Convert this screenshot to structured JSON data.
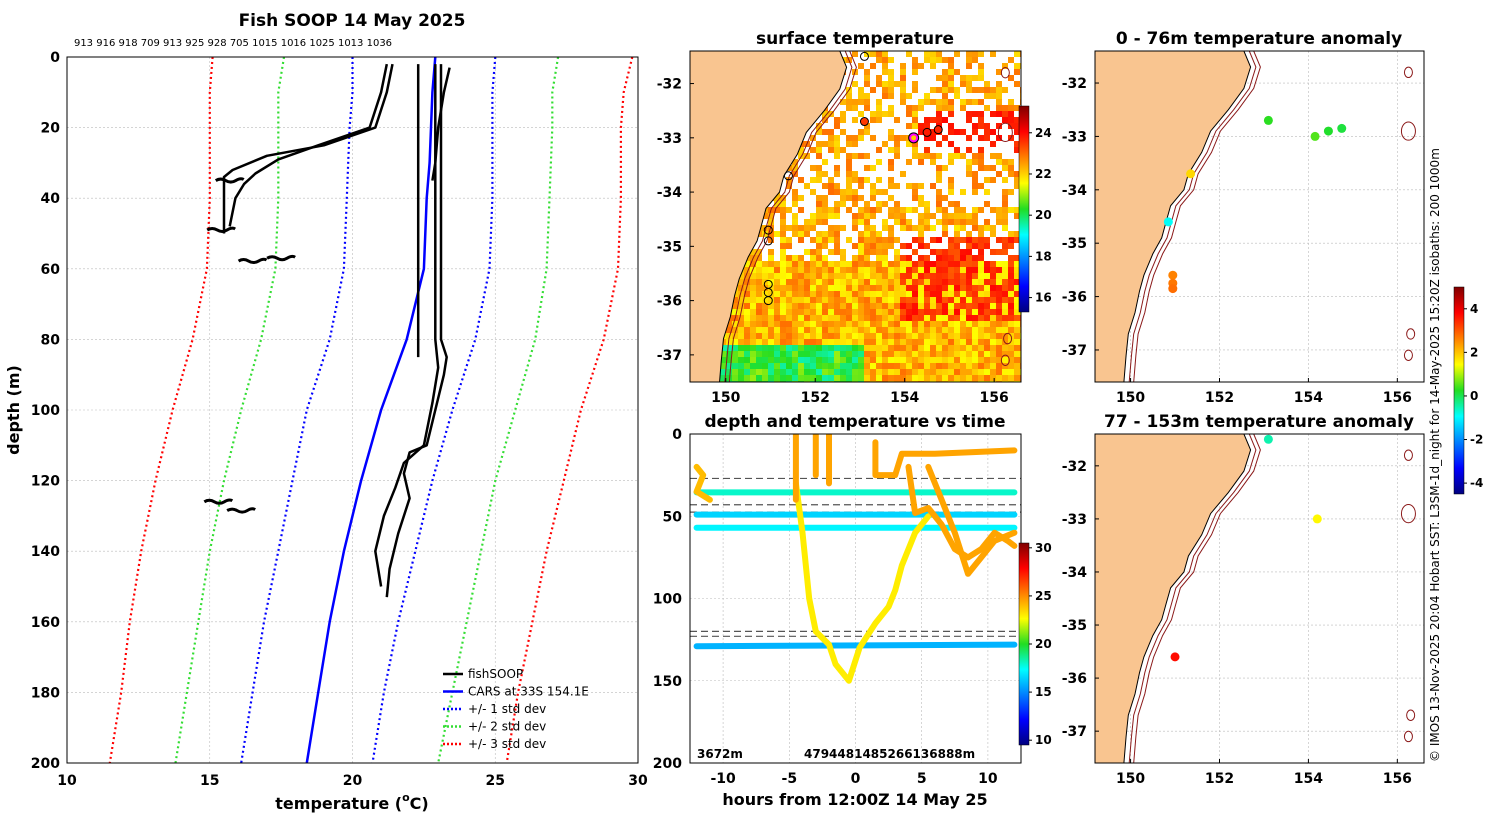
{
  "colors": {
    "land": "#f9c590",
    "isobath": "#8b1a1a",
    "fishsoop": "#000000",
    "cars": "#0000ff",
    "std1": "#0000ff",
    "std2": "#33dd33",
    "std3": "#ff0000",
    "grid": "#bbbbbb"
  },
  "chart_data": [
    {
      "id": "profile",
      "type": "line",
      "title": "Fish SOOP 14 May 2025",
      "subtitle_ids": "913 916 918 709 913 925 928 705 1015 1016 1025 1013 1036",
      "xlabel": "temperature (°C)",
      "xlabel_main": "temperature (",
      "xlabel_sup": "o",
      "xlabel_end": "C)",
      "ylabel": "depth (m)",
      "xlim": [
        10,
        30
      ],
      "ylim": [
        200,
        0
      ],
      "xticks": [
        "10",
        "15",
        "20",
        "25",
        "30"
      ],
      "yticks": [
        "0",
        "20",
        "40",
        "60",
        "80",
        "100",
        "120",
        "140",
        "160",
        "180",
        "200"
      ],
      "legend": {
        "position": "bottom-right",
        "entries": [
          "fishSOOP",
          "CARS at 33S 154.1E",
          "+/- 1 std dev",
          "+/- 2 std dev",
          "+/- 3 std dev"
        ]
      },
      "series": [
        {
          "name": "CARS at 33S 154.1E",
          "depth": [
            0,
            10,
            30,
            40,
            60,
            80,
            100,
            120,
            140,
            160,
            180,
            200
          ],
          "temp": [
            22.9,
            22.8,
            22.7,
            22.6,
            22.5,
            21.9,
            21.0,
            20.3,
            19.7,
            19.2,
            18.8,
            18.4
          ]
        },
        {
          "name": "+/- 1 std dev low",
          "depth": [
            0,
            10,
            20,
            40,
            60,
            80,
            100,
            120,
            140,
            160,
            180,
            200
          ],
          "temp": [
            20.0,
            20.0,
            19.9,
            19.8,
            19.7,
            19.2,
            18.4,
            17.9,
            17.4,
            16.9,
            16.5,
            16.1
          ]
        },
        {
          "name": "+/- 1 std dev high",
          "depth": [
            0,
            10,
            20,
            40,
            60,
            80,
            100,
            120,
            140,
            160,
            180,
            200
          ],
          "temp": [
            25.0,
            24.9,
            24.9,
            24.9,
            24.8,
            24.3,
            23.5,
            22.8,
            22.2,
            21.6,
            21.1,
            20.7
          ]
        },
        {
          "name": "+/- 2 std dev low",
          "depth": [
            0,
            10,
            20,
            40,
            60,
            80,
            100,
            120,
            140,
            160,
            180,
            200
          ],
          "temp": [
            17.6,
            17.4,
            17.4,
            17.4,
            17.3,
            16.8,
            16.1,
            15.5,
            15.0,
            14.6,
            14.2,
            13.8
          ]
        },
        {
          "name": "+/- 2 std dev high",
          "depth": [
            0,
            10,
            20,
            40,
            60,
            80,
            100,
            120,
            140,
            160,
            180,
            200
          ],
          "temp": [
            27.2,
            27.0,
            27.0,
            26.9,
            26.8,
            26.4,
            25.7,
            25.0,
            24.5,
            24.0,
            23.5,
            23.0
          ]
        },
        {
          "name": "+/- 3 std dev low",
          "depth": [
            0,
            10,
            20,
            40,
            60,
            80,
            100,
            120,
            140,
            160,
            180,
            200
          ],
          "temp": [
            15.1,
            15.0,
            15.0,
            15.0,
            14.9,
            14.4,
            13.7,
            13.1,
            12.6,
            12.2,
            11.9,
            11.5
          ]
        },
        {
          "name": "+/- 3 std dev high",
          "depth": [
            0,
            10,
            20,
            40,
            60,
            80,
            100,
            120,
            140,
            160,
            180,
            200
          ],
          "temp": [
            29.8,
            29.5,
            29.4,
            29.4,
            29.3,
            28.8,
            28.0,
            27.4,
            26.8,
            26.3,
            25.8,
            25.4
          ]
        },
        {
          "name": "fishSOOP profile A",
          "depth": [
            2,
            10,
            20,
            25,
            28,
            32,
            34,
            40,
            50
          ],
          "temp": [
            21.4,
            21.2,
            20.8,
            19.0,
            17.0,
            15.8,
            15.5,
            15.5,
            15.5
          ]
        },
        {
          "name": "fishSOOP profile B",
          "depth": [
            2,
            10,
            20,
            25,
            29,
            33,
            36,
            40,
            48
          ],
          "temp": [
            21.2,
            21.0,
            20.6,
            18.8,
            17.4,
            16.6,
            16.2,
            15.9,
            15.7
          ]
        },
        {
          "name": "fishSOOP profile C",
          "depth": [
            2,
            20,
            40,
            60,
            80,
            85
          ],
          "temp": [
            22.3,
            22.3,
            22.3,
            22.3,
            22.3,
            22.3
          ]
        },
        {
          "name": "fishSOOP profile D",
          "depth": [
            2,
            20,
            40,
            60,
            80,
            85,
            90,
            100,
            110,
            112,
            118,
            125,
            135,
            145,
            153
          ],
          "temp": [
            23.1,
            23.1,
            23.1,
            23.1,
            23.1,
            23.3,
            23.2,
            22.9,
            22.6,
            22.0,
            21.8,
            22.0,
            21.6,
            21.3,
            21.2
          ]
        },
        {
          "name": "fishSOOP profile E",
          "depth": [
            2,
            20,
            40,
            60,
            80,
            88,
            98,
            110,
            115,
            122,
            130,
            140,
            150
          ],
          "temp": [
            22.9,
            22.9,
            22.9,
            22.9,
            22.9,
            23.0,
            22.8,
            22.5,
            21.8,
            21.5,
            21.1,
            20.8,
            21.0
          ]
        },
        {
          "name": "fishSOOP profile F",
          "depth": [
            3,
            10,
            20,
            30,
            35
          ],
          "temp": [
            23.4,
            23.2,
            23.0,
            22.9,
            22.8
          ]
        }
      ],
      "blobs": [
        {
          "temp": 15.7,
          "depth": 35
        },
        {
          "temp": 15.4,
          "depth": 49
        },
        {
          "temp": 17.5,
          "depth": 57
        },
        {
          "temp": 16.5,
          "depth": 57.8
        },
        {
          "temp": 16.1,
          "depth": 128.5
        },
        {
          "temp": 15.3,
          "depth": 126
        }
      ]
    },
    {
      "id": "surface",
      "type": "heatmap",
      "title": "surface temperature",
      "xlim": [
        149.2,
        156.6
      ],
      "ylim": [
        -37.5,
        -31.4
      ],
      "xticks": [
        "150",
        "152",
        "154",
        "156"
      ],
      "yticks": [
        "-32",
        "-33",
        "-34",
        "-35",
        "-36",
        "-37"
      ],
      "colorbar": {
        "ticks": [
          "16",
          "18",
          "20",
          "22",
          "24"
        ],
        "range": [
          15.3,
          25.3
        ]
      },
      "stations": [
        {
          "lon": 153.1,
          "lat": -31.5,
          "value": null
        },
        {
          "lon": 153.1,
          "lat": -32.7,
          "value": 23.5
        },
        {
          "lon": 154.5,
          "lat": -32.9,
          "value": 23.8
        },
        {
          "lon": 154.75,
          "lat": -32.85,
          "value": 23.7
        },
        {
          "lon": 154.2,
          "lat": -33.0,
          "value": 24.1
        },
        {
          "lon": 151.4,
          "lat": -33.7,
          "value": null
        },
        {
          "lon": 150.95,
          "lat": -34.7,
          "value": null
        },
        {
          "lon": 150.95,
          "lat": -34.9,
          "value": null
        },
        {
          "lon": 150.95,
          "lat": -35.7,
          "value": null
        },
        {
          "lon": 150.95,
          "lat": -35.85,
          "value": null
        },
        {
          "lon": 150.95,
          "lat": -36.0,
          "value": null
        }
      ]
    },
    {
      "id": "anomaly_shallow",
      "type": "scatter",
      "title": "0 - 76m temperature anomaly",
      "xlim": [
        149.2,
        156.6
      ],
      "ylim": [
        -37.6,
        -31.4
      ],
      "xticks": [
        "150",
        "152",
        "154",
        "156"
      ],
      "yticks": [
        "-32",
        "-33",
        "-34",
        "-35",
        "-36",
        "-37"
      ],
      "points": [
        {
          "lon": 153.1,
          "lat": -32.7,
          "value": 0.3
        },
        {
          "lon": 154.15,
          "lat": -33.0,
          "value": 0.5
        },
        {
          "lon": 154.45,
          "lat": -32.9,
          "value": 0.2
        },
        {
          "lon": 154.75,
          "lat": -32.85,
          "value": 0.1
        },
        {
          "lon": 151.35,
          "lat": -33.7,
          "value": 1.8
        },
        {
          "lon": 150.85,
          "lat": -34.6,
          "value": -0.9
        },
        {
          "lon": 150.95,
          "lat": -35.6,
          "value": 2.6
        },
        {
          "lon": 150.95,
          "lat": -35.75,
          "value": 2.7
        },
        {
          "lon": 150.95,
          "lat": -35.85,
          "value": 2.8
        }
      ]
    },
    {
      "id": "anomaly_deep",
      "type": "scatter",
      "title": "77 - 153m temperature anomaly",
      "xlim": [
        149.2,
        156.6
      ],
      "ylim": [
        -37.6,
        -31.4
      ],
      "xticks": [
        "150",
        "152",
        "154",
        "156"
      ],
      "yticks": [
        "-32",
        "-33",
        "-34",
        "-35",
        "-36",
        "-37"
      ],
      "colorbar": {
        "ticks": [
          "4",
          "2",
          "0",
          "-2",
          "-4"
        ],
        "range": [
          -4.5,
          5
        ]
      },
      "points": [
        {
          "lon": 153.1,
          "lat": -31.5,
          "value": -0.5
        },
        {
          "lon": 154.2,
          "lat": -33.0,
          "value": 1.5
        },
        {
          "lon": 151.0,
          "lat": -35.6,
          "value": 3.7
        }
      ]
    },
    {
      "id": "depth_time",
      "type": "scatter",
      "title": "depth and temperature vs time",
      "xlabel": "hours from 12:00Z 14 May 25",
      "xlim": [
        -12.5,
        12.5
      ],
      "ylim": [
        200,
        0
      ],
      "xticks": [
        "-10",
        "-5",
        "0",
        "5",
        "10"
      ],
      "yticks": [
        "0",
        "50",
        "100",
        "150",
        "200"
      ],
      "colorbar": {
        "ticks": [
          "30",
          "25",
          "20",
          "15",
          "10"
        ],
        "range": [
          9.5,
          30.5
        ]
      },
      "bottom_depth_labels": [
        "3672m",
        "4794481485266136888m"
      ],
      "dashed_depths": [
        27,
        43,
        47.5,
        120,
        123
      ],
      "tracks": [
        {
          "temp": 16.5,
          "points": [
            [
              -12,
              49
            ],
            [
              12,
              49
            ]
          ]
        },
        {
          "temp": 17.2,
          "points": [
            [
              -12,
              57
            ],
            [
              12,
              57
            ]
          ]
        },
        {
          "temp": 18.0,
          "points": [
            [
              -12,
              35.5
            ],
            [
              12,
              35.5
            ]
          ]
        },
        {
          "temp": 15.8,
          "points": [
            [
              -12,
              129
            ],
            [
              12,
              128
            ]
          ]
        },
        {
          "temp": 23.0,
          "points": [
            [
              -4.5,
              30
            ],
            [
              -4.0,
              60
            ],
            [
              -3.5,
              100
            ],
            [
              -3.0,
              120
            ],
            [
              -2.0,
              128
            ],
            [
              -1.5,
              140
            ],
            [
              -0.5,
              150
            ],
            [
              0.3,
              130
            ],
            [
              1.5,
              115
            ],
            [
              2.5,
              105
            ],
            [
              3.0,
              95
            ],
            [
              3.5,
              80
            ],
            [
              4.5,
              60
            ],
            [
              5.5,
              50
            ]
          ]
        },
        {
          "temp": 24.5,
          "points": [
            [
              -4.5,
              0
            ],
            [
              -4.5,
              40
            ]
          ]
        },
        {
          "temp": 24.5,
          "points": [
            [
              -3.0,
              0
            ],
            [
              -3.0,
              25
            ]
          ]
        },
        {
          "temp": 24.5,
          "points": [
            [
              -2.0,
              0
            ],
            [
              -2.0,
              30
            ]
          ]
        },
        {
          "temp": 24.5,
          "points": [
            [
              1.5,
              5
            ],
            [
              1.5,
              25
            ],
            [
              3.0,
              25
            ],
            [
              3.5,
              12
            ],
            [
              6.0,
              12
            ],
            [
              12,
              10
            ]
          ]
        },
        {
          "temp": 24.5,
          "points": [
            [
              4.0,
              20
            ],
            [
              4.5,
              48
            ],
            [
              5.5,
              45
            ],
            [
              6.5,
              55
            ],
            [
              7.5,
              70
            ],
            [
              8.5,
              75
            ],
            [
              9.5,
              70
            ],
            [
              10.5,
              60
            ],
            [
              11.5,
              65
            ],
            [
              12,
              68
            ]
          ]
        },
        {
          "temp": 24.5,
          "points": [
            [
              5.5,
              20
            ],
            [
              6.5,
              40
            ],
            [
              7.5,
              60
            ],
            [
              8.5,
              85
            ],
            [
              9.5,
              75
            ],
            [
              10.5,
              65
            ],
            [
              12,
              60
            ]
          ]
        },
        {
          "temp": 24.0,
          "points": [
            [
              -12,
              20
            ],
            [
              -11.5,
              25
            ],
            [
              -12,
              35
            ],
            [
              -11,
              40
            ]
          ]
        }
      ]
    }
  ],
  "credit": "© IMOS 13-Nov-2025 20:04 Hobart SST: L3SM-1d_night for 14-May-2025 15:20Z isobaths: 200  1000m"
}
